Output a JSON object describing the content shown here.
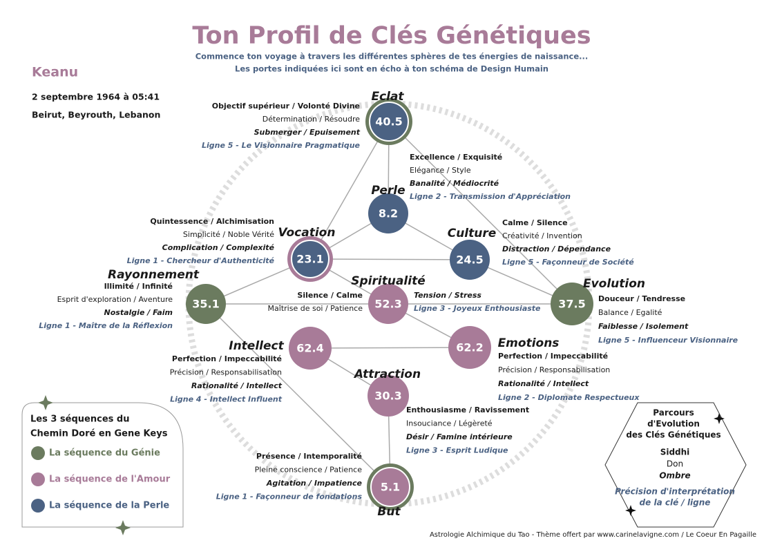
{
  "header": {
    "title": "Ton Profil de Clés Génétiques",
    "subtitle": [
      "Commence ton voyage à travers les différentes sphères de tes énergies de naissance...",
      "Les portes indiquées ici sont en écho à ton schéma de Design Humain"
    ]
  },
  "person": {
    "name": "Keanu",
    "birth": "2 septembre 1964 à 05:41",
    "place": "Beirut, Beyrouth, Lebanon"
  },
  "nodes": [
    {
      "name": "Eclat",
      "key": "40.5",
      "color": "#4b6283",
      "ring_color": "#6b7b5f",
      "lines": [
        "Objectif supérieur / Volonté Divine",
        "Détermination / Résoudre",
        "Submerger / Epuisement",
        "Ligne 5 - Le Visionnaire Pragmatique"
      ]
    },
    {
      "name": "Perle",
      "key": "8.2",
      "color": "#4b6283",
      "lines": [
        "Excellence / Exquisité",
        "Elégance / Style",
        "Banalité / Médiocrité",
        "Ligne 2 - Transmission d'Appréciation"
      ]
    },
    {
      "name": "Vocation",
      "key": "23.1",
      "color": "#4b6283",
      "ring_color": "#a87b98",
      "lines": [
        "Quintessence / Alchimisation",
        "Simplicité / Noble Vérité",
        "Complication / Complexité",
        "Ligne 1 - Chercheur d'Authenticité"
      ]
    },
    {
      "name": "Culture",
      "key": "24.5",
      "color": "#4b6283",
      "lines": [
        "Calme / Silence",
        "Créativité / Invention",
        "Distraction / Dépendance",
        "Ligne 5 - Façonneur de Société"
      ]
    },
    {
      "name": "Rayonnement",
      "key": "35.1",
      "color": "#6b7b5f",
      "lines": [
        "Illimité / Infinité",
        "Esprit d'exploration / Aventure",
        "Nostalgie / Faim",
        "Ligne 1 - Maître de la Réflexion"
      ]
    },
    {
      "name": "Spiritualité",
      "key": "52.3",
      "color": "#a87b98",
      "lines": [
        "Silence / Calme",
        "Maîtrise de soi / Patience",
        "Tension / Stress",
        "Ligne 3 - Joyeux Enthousiaste"
      ]
    },
    {
      "name": "Evolution",
      "key": "37.5",
      "color": "#6b7b5f",
      "lines": [
        "Douceur / Tendresse",
        "Balance / Egalité",
        "Faiblesse / Isolement",
        "Ligne 5 - Influenceur Visionnaire"
      ]
    },
    {
      "name": "Intellect",
      "key": "62.4",
      "color": "#a87b98",
      "lines": [
        "Perfection / Impeccabilité",
        "Précision / Responsabilisation",
        "Rationalité / Intellect",
        "Ligne 4 - Intellect Influent"
      ]
    },
    {
      "name": "Emotions",
      "key": "62.2",
      "color": "#a87b98",
      "lines": [
        "Perfection / Impeccabilité",
        "Précision / Responsabilisation",
        "Rationalité / Intellect",
        "Ligne 2 - Diplomate Respectueux"
      ]
    },
    {
      "name": "Attraction",
      "key": "30.3",
      "color": "#a87b98",
      "lines": [
        "Enthousiasme / Ravissement",
        "Insouciance / Légèreté",
        "Désir / Famine intérieure",
        "Ligne 3 - Esprit Ludique"
      ]
    },
    {
      "name": "But",
      "key": "5.1",
      "color": "#a87b98",
      "ring_color": "#6b7b5f",
      "lines": [
        "Présence / Intemporalité",
        "Pleine conscience / Patience",
        "Agitation / Impatience",
        "Ligne 1 - Façonneur de fondations"
      ]
    }
  ],
  "legend": {
    "title": [
      "Les 3 séquences du",
      "Chemin Doré en Gene Keys"
    ],
    "items": [
      {
        "label": "La séquence du Génie",
        "color": "#6b7b5f"
      },
      {
        "label": "La séquence de l'Amour",
        "color": "#a87b98"
      },
      {
        "label": "La séquence de la Perle",
        "color": "#4b6283"
      }
    ]
  },
  "guide": {
    "title": [
      "Parcours",
      "d'Evolution",
      "des Clés Génétiques"
    ],
    "siddhi": "Siddhi",
    "gift": "Don",
    "shadow": "Ombre",
    "note": [
      "Précision d'interprétation",
      "de la clé / ligne"
    ]
  },
  "footer": "Astrologie Alchimique du Tao - Thème offert par www.carinelavigne.com / Le Coeur En Pagaille"
}
